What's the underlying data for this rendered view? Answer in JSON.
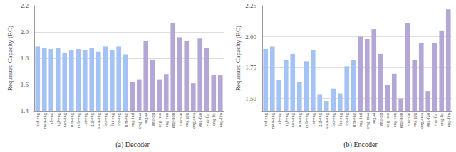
{
  "chart_data": [
    {
      "type": "bar",
      "title": "(a) Decoder",
      "y_label": "Requested Capacity (RC)",
      "categories": [
        "ind-eng",
        "msa-eng",
        "sl-eng",
        "tgl-eng",
        "nso-eng",
        "run-eng",
        "nob-eng",
        "cat-eng",
        "glg-eng",
        "swa-eng",
        "fao-eng",
        "fur-eng",
        "ltz-eng",
        "lim-eng",
        "eng-ind",
        "eng-msa",
        "eng-sl",
        "eng-tgl",
        "eng-nso",
        "eng-run",
        "eng-nob",
        "eng-cat",
        "eng-glg",
        "eng-swa",
        "eng-fao",
        "eng-fur",
        "eng-ltz",
        "eng-lim"
      ],
      "values": [
        1.89,
        1.88,
        1.87,
        1.88,
        1.84,
        1.86,
        1.87,
        1.86,
        1.88,
        1.85,
        1.89,
        1.86,
        1.89,
        1.83,
        1.62,
        1.64,
        1.93,
        1.79,
        1.64,
        1.68,
        2.07,
        1.96,
        1.93,
        1.61,
        1.95,
        1.88,
        1.67,
        1.67
      ],
      "colors": [
        "#a4c2f4",
        "#a4c2f4",
        "#a4c2f4",
        "#a4c2f4",
        "#a4c2f4",
        "#a4c2f4",
        "#a4c2f4",
        "#a4c2f4",
        "#a4c2f4",
        "#a4c2f4",
        "#a4c2f4",
        "#a4c2f4",
        "#a4c2f4",
        "#a4c2f4",
        "#b4a7d6",
        "#b4a7d6",
        "#b4a7d6",
        "#b4a7d6",
        "#b4a7d6",
        "#b4a7d6",
        "#b4a7d6",
        "#b4a7d6",
        "#b4a7d6",
        "#b4a7d6",
        "#b4a7d6",
        "#b4a7d6",
        "#b4a7d6",
        "#b4a7d6"
      ],
      "ylim": [
        1.4,
        2.2
      ],
      "yticks": [
        1.4,
        1.6,
        1.8,
        {
          "value": 2,
          "label": "2.0"
        },
        2.2
      ],
      "grid": true
    },
    {
      "type": "bar",
      "title": "(b) Encoder",
      "y_label": "Requested Capacity (RC)",
      "categories": [
        "ind-eng",
        "msa-eng",
        "sl-eng",
        "tgl-eng",
        "nso-eng",
        "run-eng",
        "nob-eng",
        "cat-eng",
        "glg-eng",
        "swa-eng",
        "fao-eng",
        "fur-eng",
        "ltz-eng",
        "lim-eng",
        "eng-ind",
        "eng-msa",
        "eng-sl",
        "eng-tgl",
        "eng-nso",
        "eng-run",
        "eng-nob",
        "eng-cat",
        "eng-glg",
        "eng-swa",
        "eng-fao",
        "eng-fur",
        "eng-ltz",
        "eng-lim"
      ],
      "values": [
        1.9,
        1.92,
        1.65,
        1.81,
        1.86,
        1.63,
        1.8,
        1.89,
        1.53,
        1.48,
        1.58,
        1.54,
        1.76,
        1.81,
        2.0,
        1.98,
        2.06,
        1.86,
        1.61,
        1.7,
        1.5,
        2.11,
        1.81,
        1.95,
        1.56,
        1.95,
        2.05,
        2.22
      ],
      "colors": [
        "#a4c2f4",
        "#a4c2f4",
        "#a4c2f4",
        "#a4c2f4",
        "#a4c2f4",
        "#a4c2f4",
        "#a4c2f4",
        "#a4c2f4",
        "#a4c2f4",
        "#a4c2f4",
        "#a4c2f4",
        "#a4c2f4",
        "#a4c2f4",
        "#a4c2f4",
        "#b4a7d6",
        "#b4a7d6",
        "#b4a7d6",
        "#b4a7d6",
        "#b4a7d6",
        "#b4a7d6",
        "#b4a7d6",
        "#b4a7d6",
        "#b4a7d6",
        "#b4a7d6",
        "#b4a7d6",
        "#b4a7d6",
        "#b4a7d6",
        "#b4a7d6"
      ],
      "ylim": [
        1.4,
        2.25
      ],
      "yticks": [
        {
          "value": 1.5,
          "label": "1.50"
        },
        1.75,
        {
          "value": 2,
          "label": "2.00"
        },
        2.25
      ],
      "grid": true
    }
  ]
}
